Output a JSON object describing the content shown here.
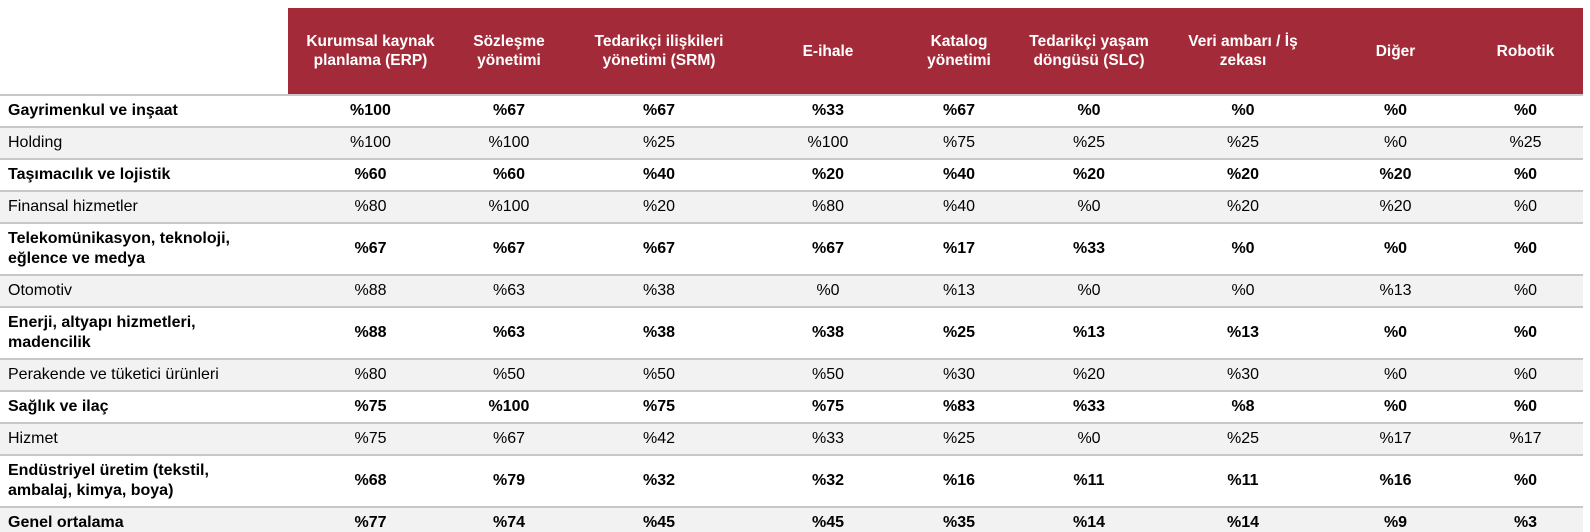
{
  "chart_data": {
    "type": "table",
    "title": "",
    "value_prefix": "%",
    "columns": [
      "Kurumsal kaynak planlama (ERP)",
      "Sözleşme yönetimi",
      "Tedarikçi ilişkileri yönetimi (SRM)",
      "E-ihale",
      "Katalog yönetimi",
      "Tedarikçi yaşam döngüsü (SLC)",
      "Veri ambarı / İş zekası",
      "Diğer",
      "Robotik"
    ],
    "rows": [
      {
        "label": "Gayrimenkul ve inşaat",
        "bold": true,
        "shaded": false,
        "values": [
          100,
          67,
          67,
          33,
          67,
          0,
          0,
          0,
          0
        ]
      },
      {
        "label": "Holding",
        "bold": false,
        "shaded": true,
        "values": [
          100,
          100,
          25,
          100,
          75,
          25,
          25,
          0,
          25
        ]
      },
      {
        "label": "Taşımacılık ve lojistik",
        "bold": true,
        "shaded": false,
        "values": [
          60,
          60,
          40,
          20,
          40,
          20,
          20,
          20,
          0
        ]
      },
      {
        "label": "Finansal hizmetler",
        "bold": false,
        "shaded": true,
        "values": [
          80,
          100,
          20,
          80,
          40,
          0,
          20,
          20,
          0
        ]
      },
      {
        "label": "Telekomünikasyon, teknoloji, eğlence ve medya",
        "bold": true,
        "shaded": false,
        "values": [
          67,
          67,
          67,
          67,
          17,
          33,
          0,
          0,
          0
        ]
      },
      {
        "label": "Otomotiv",
        "bold": false,
        "shaded": true,
        "values": [
          88,
          63,
          38,
          0,
          13,
          0,
          0,
          13,
          0
        ]
      },
      {
        "label": "Enerji, altyapı hizmetleri, madencilik",
        "bold": true,
        "shaded": false,
        "values": [
          88,
          63,
          38,
          38,
          25,
          13,
          13,
          0,
          0
        ]
      },
      {
        "label": "Perakende ve tüketici ürünleri",
        "bold": false,
        "shaded": true,
        "values": [
          80,
          50,
          50,
          50,
          30,
          20,
          30,
          0,
          0
        ]
      },
      {
        "label": "Sağlık ve ilaç",
        "bold": true,
        "shaded": false,
        "values": [
          75,
          100,
          75,
          75,
          83,
          33,
          8,
          0,
          0
        ]
      },
      {
        "label": "Hizmet",
        "bold": false,
        "shaded": true,
        "values": [
          75,
          67,
          42,
          33,
          25,
          0,
          25,
          17,
          17
        ]
      },
      {
        "label": "Endüstriyel üretim (tekstil, ambalaj, kimya, boya)",
        "bold": true,
        "shaded": false,
        "values": [
          68,
          79,
          32,
          32,
          16,
          11,
          11,
          16,
          0
        ]
      },
      {
        "label": "Genel ortalama",
        "bold": true,
        "shaded": true,
        "values": [
          77,
          74,
          45,
          45,
          35,
          14,
          14,
          9,
          3
        ]
      }
    ]
  },
  "colors": {
    "header_bg": "#A32A38",
    "header_text": "#FFFFFF",
    "row_bg": "#FFFFFF",
    "row_shaded_bg": "#F2F2F2",
    "divider": "#C7C7C7",
    "text": "#000000"
  }
}
